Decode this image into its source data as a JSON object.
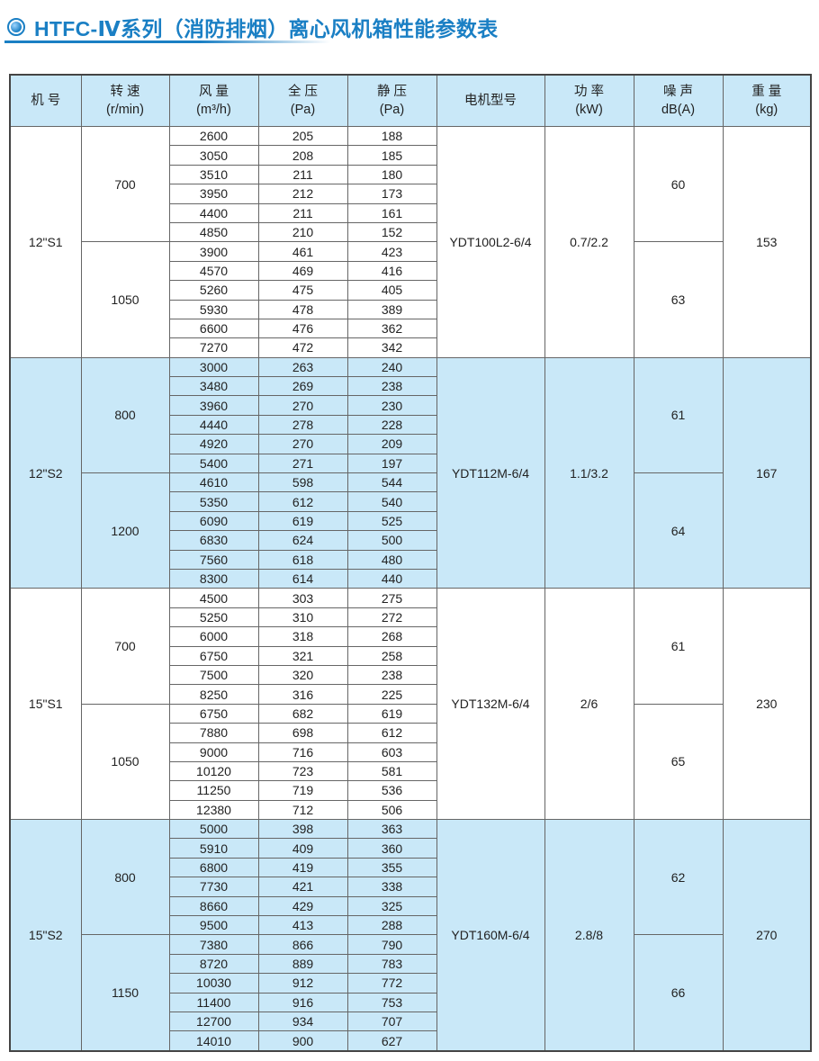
{
  "title": "HTFC-Ⅳ系列（消防排烟）离心风机箱性能参数表",
  "accent_color": "#1a7fc4",
  "band_color": "#c9e8f8",
  "headers": [
    {
      "l1": "机 号",
      "l2": ""
    },
    {
      "l1": "转 速",
      "l2": "(r/min)"
    },
    {
      "l1": "风 量",
      "l2": "(m³/h)"
    },
    {
      "l1": "全 压",
      "l2": "(Pa)"
    },
    {
      "l1": "静 压",
      "l2": "(Pa)"
    },
    {
      "l1": "电机型号",
      "l2": ""
    },
    {
      "l1": "功 率",
      "l2": "(kW)"
    },
    {
      "l1": "噪 声",
      "l2": "dB(A)"
    },
    {
      "l1": "重 量",
      "l2": "(kg)"
    }
  ],
  "groups": [
    {
      "model": "12\"S1",
      "motor": "YDT100L2-6/4",
      "power": "0.7/2.2",
      "weight": "153",
      "shaded": false,
      "blocks": [
        {
          "speed": "700",
          "noise": "60",
          "rows": [
            [
              "2600",
              "205",
              "188"
            ],
            [
              "3050",
              "208",
              "185"
            ],
            [
              "3510",
              "211",
              "180"
            ],
            [
              "3950",
              "212",
              "173"
            ],
            [
              "4400",
              "211",
              "161"
            ],
            [
              "4850",
              "210",
              "152"
            ]
          ]
        },
        {
          "speed": "1050",
          "noise": "63",
          "rows": [
            [
              "3900",
              "461",
              "423"
            ],
            [
              "4570",
              "469",
              "416"
            ],
            [
              "5260",
              "475",
              "405"
            ],
            [
              "5930",
              "478",
              "389"
            ],
            [
              "6600",
              "476",
              "362"
            ],
            [
              "7270",
              "472",
              "342"
            ]
          ]
        }
      ]
    },
    {
      "model": "12\"S2",
      "motor": "YDT112M-6/4",
      "power": "1.1/3.2",
      "weight": "167",
      "shaded": true,
      "blocks": [
        {
          "speed": "800",
          "noise": "61",
          "rows": [
            [
              "3000",
              "263",
              "240"
            ],
            [
              "3480",
              "269",
              "238"
            ],
            [
              "3960",
              "270",
              "230"
            ],
            [
              "4440",
              "278",
              "228"
            ],
            [
              "4920",
              "270",
              "209"
            ],
            [
              "5400",
              "271",
              "197"
            ]
          ]
        },
        {
          "speed": "1200",
          "noise": "64",
          "rows": [
            [
              "4610",
              "598",
              "544"
            ],
            [
              "5350",
              "612",
              "540"
            ],
            [
              "6090",
              "619",
              "525"
            ],
            [
              "6830",
              "624",
              "500"
            ],
            [
              "7560",
              "618",
              "480"
            ],
            [
              "8300",
              "614",
              "440"
            ]
          ]
        }
      ]
    },
    {
      "model": "15\"S1",
      "motor": "YDT132M-6/4",
      "power": "2/6",
      "weight": "230",
      "shaded": false,
      "blocks": [
        {
          "speed": "700",
          "noise": "61",
          "rows": [
            [
              "4500",
              "303",
              "275"
            ],
            [
              "5250",
              "310",
              "272"
            ],
            [
              "6000",
              "318",
              "268"
            ],
            [
              "6750",
              "321",
              "258"
            ],
            [
              "7500",
              "320",
              "238"
            ],
            [
              "8250",
              "316",
              "225"
            ]
          ]
        },
        {
          "speed": "1050",
          "noise": "65",
          "rows": [
            [
              "6750",
              "682",
              "619"
            ],
            [
              "7880",
              "698",
              "612"
            ],
            [
              "9000",
              "716",
              "603"
            ],
            [
              "10120",
              "723",
              "581"
            ],
            [
              "11250",
              "719",
              "536"
            ],
            [
              "12380",
              "712",
              "506"
            ]
          ]
        }
      ]
    },
    {
      "model": "15\"S2",
      "motor": "YDT160M-6/4",
      "power": "2.8/8",
      "weight": "270",
      "shaded": true,
      "blocks": [
        {
          "speed": "800",
          "noise": "62",
          "rows": [
            [
              "5000",
              "398",
              "363"
            ],
            [
              "5910",
              "409",
              "360"
            ],
            [
              "6800",
              "419",
              "355"
            ],
            [
              "7730",
              "421",
              "338"
            ],
            [
              "8660",
              "429",
              "325"
            ],
            [
              "9500",
              "413",
              "288"
            ]
          ]
        },
        {
          "speed": "1150",
          "noise": "66",
          "rows": [
            [
              "7380",
              "866",
              "790"
            ],
            [
              "8720",
              "889",
              "783"
            ],
            [
              "10030",
              "912",
              "772"
            ],
            [
              "11400",
              "916",
              "753"
            ],
            [
              "12700",
              "934",
              "707"
            ],
            [
              "14010",
              "900",
              "627"
            ]
          ]
        }
      ]
    }
  ]
}
